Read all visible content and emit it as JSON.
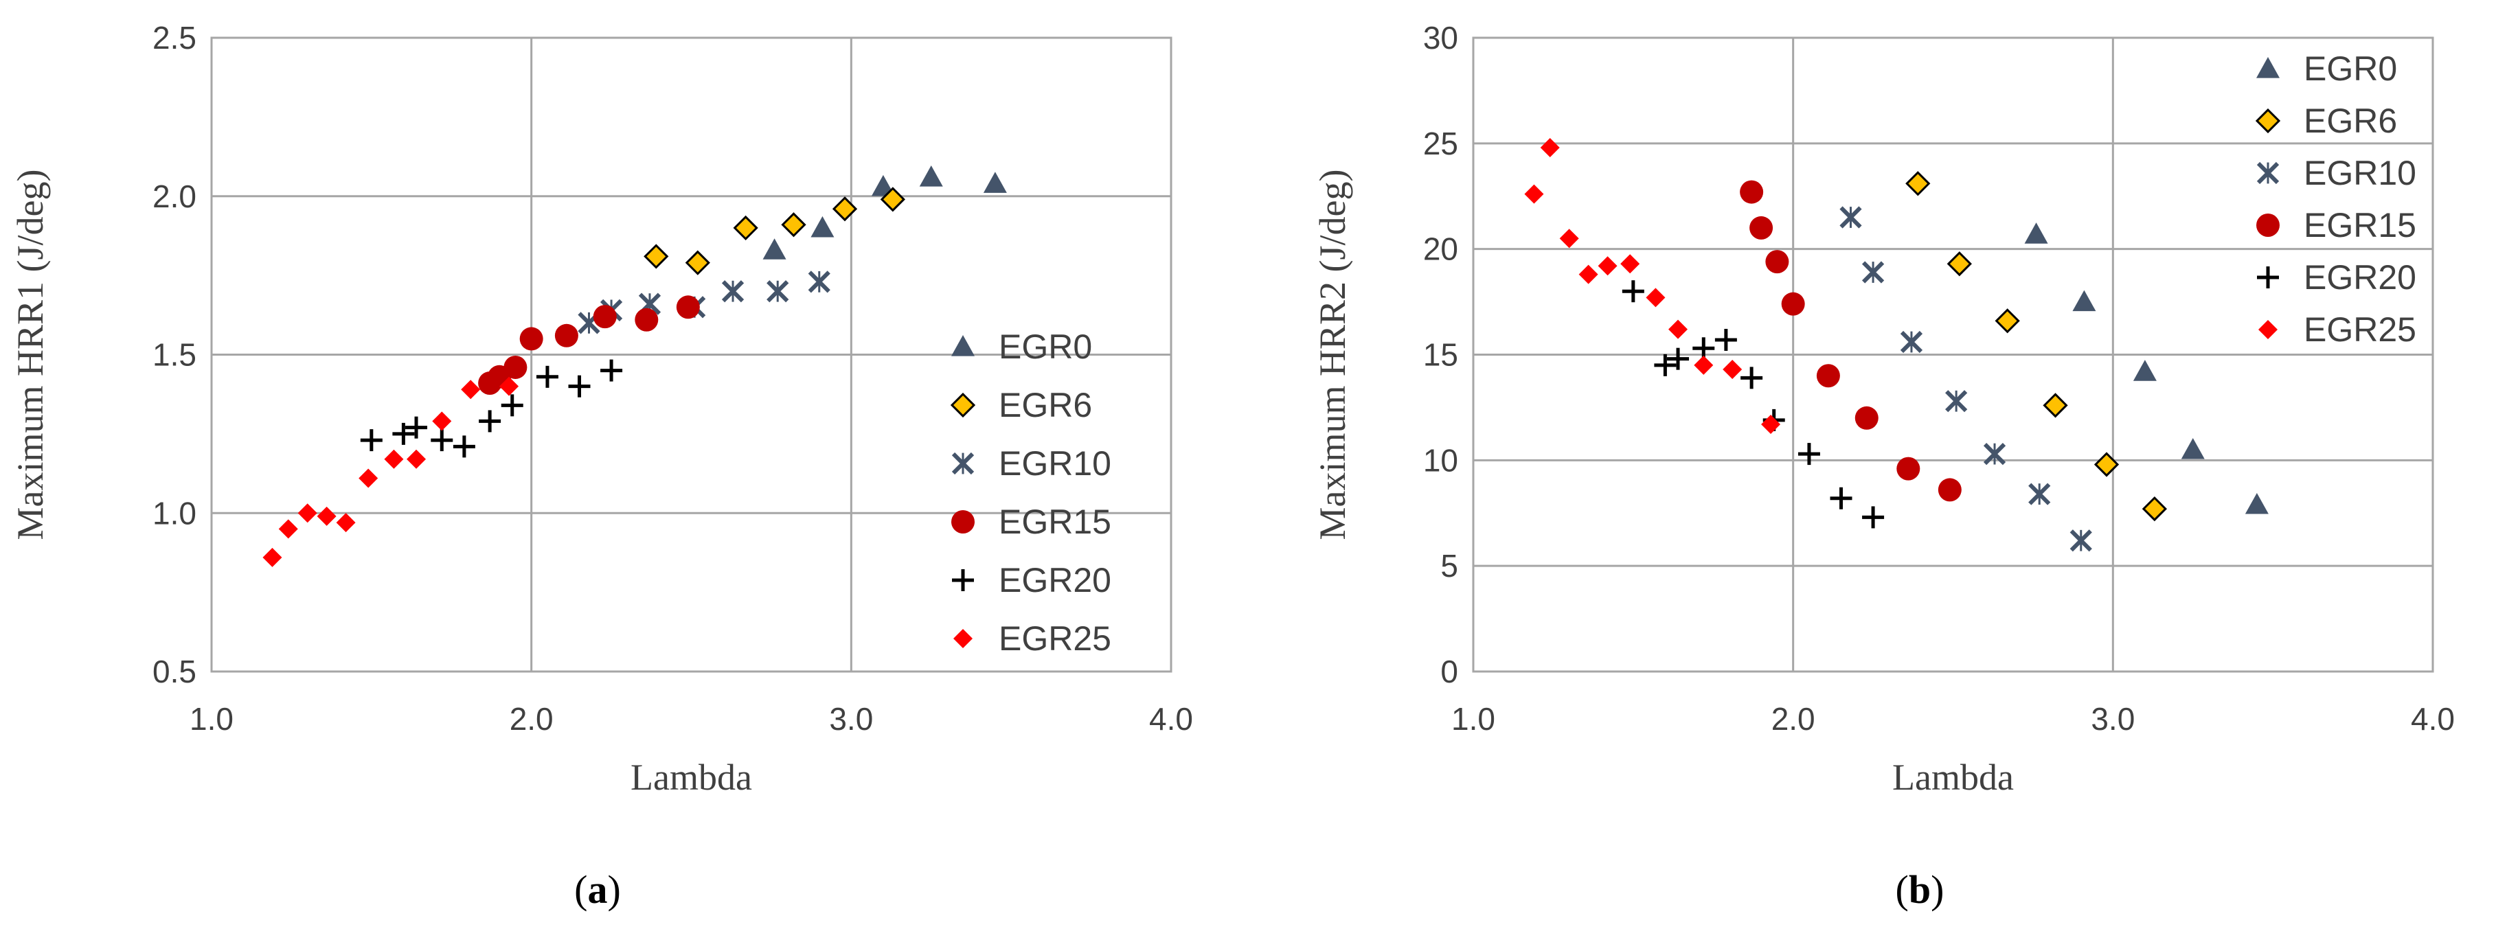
{
  "colors": {
    "EGR0": "#44546A",
    "EGR6": "#FFC000",
    "EGR10": "#44546A",
    "EGR15": "#C00000",
    "EGR20": "#000000",
    "EGR25": "#FF0000",
    "grid": "#A6A6A6"
  },
  "chart_data": [
    {
      "type": "scatter",
      "panel": "a",
      "caption": {
        "open": "(",
        "letter": "a",
        "close": ")"
      },
      "xlabel": "Lambda",
      "ylabel": "Maximum HRR1 (J/deg)",
      "xlim": [
        1.0,
        4.0
      ],
      "ylim": [
        0.5,
        2.5
      ],
      "xticks": [
        1.0,
        2.0,
        3.0,
        4.0
      ],
      "xtick_labels": [
        "1.0",
        "2.0",
        "3.0",
        "4.0"
      ],
      "yticks": [
        0.5,
        1.0,
        1.5,
        2.0,
        2.5
      ],
      "ytick_labels": [
        "0.5",
        "1.0",
        "1.5",
        "2.0",
        "2.5"
      ],
      "grid": true,
      "legend_position": "bottom-right",
      "series": [
        {
          "name": "EGR0",
          "marker": "triangle",
          "points": [
            [
              2.76,
              1.83
            ],
            [
              2.91,
              1.9
            ],
            [
              3.1,
              2.03
            ],
            [
              3.25,
              2.06
            ],
            [
              3.45,
              2.04
            ]
          ]
        },
        {
          "name": "EGR6",
          "marker": "diamond",
          "points": [
            [
              2.39,
              1.81
            ],
            [
              2.52,
              1.79
            ],
            [
              2.67,
              1.9
            ],
            [
              2.82,
              1.91
            ],
            [
              2.98,
              1.96
            ],
            [
              3.13,
              1.99
            ]
          ]
        },
        {
          "name": "EGR10",
          "marker": "x",
          "points": [
            [
              2.18,
              1.6
            ],
            [
              2.25,
              1.64
            ],
            [
              2.37,
              1.66
            ],
            [
              2.51,
              1.65
            ],
            [
              2.63,
              1.7
            ],
            [
              2.77,
              1.7
            ],
            [
              2.9,
              1.73
            ]
          ]
        },
        {
          "name": "EGR15",
          "marker": "circle",
          "points": [
            [
              1.87,
              1.41
            ],
            [
              1.9,
              1.43
            ],
            [
              1.95,
              1.46
            ],
            [
              2.0,
              1.55
            ],
            [
              2.11,
              1.56
            ],
            [
              2.23,
              1.62
            ],
            [
              2.36,
              1.61
            ],
            [
              2.49,
              1.65
            ]
          ]
        },
        {
          "name": "EGR20",
          "marker": "plus",
          "points": [
            [
              1.5,
              1.23
            ],
            [
              1.6,
              1.25
            ],
            [
              1.64,
              1.27
            ],
            [
              1.72,
              1.23
            ],
            [
              1.79,
              1.21
            ],
            [
              1.87,
              1.29
            ],
            [
              1.94,
              1.34
            ],
            [
              2.05,
              1.43
            ],
            [
              2.15,
              1.4
            ],
            [
              2.25,
              1.45
            ]
          ]
        },
        {
          "name": "EGR25",
          "marker": "diamond-small",
          "points": [
            [
              1.19,
              0.86
            ],
            [
              1.24,
              0.95
            ],
            [
              1.3,
              1.0
            ],
            [
              1.36,
              0.99
            ],
            [
              1.42,
              0.97
            ],
            [
              1.49,
              1.11
            ],
            [
              1.57,
              1.17
            ],
            [
              1.64,
              1.17
            ],
            [
              1.72,
              1.29
            ],
            [
              1.81,
              1.39
            ],
            [
              1.93,
              1.4
            ]
          ]
        }
      ]
    },
    {
      "type": "scatter",
      "panel": "b",
      "caption": {
        "open": "(",
        "letter": "b",
        "close": ")"
      },
      "xlabel": "Lambda",
      "ylabel": "Maximum HRR2 (J/deg)",
      "xlim": [
        1.0,
        4.0
      ],
      "ylim": [
        0,
        30
      ],
      "xticks": [
        1.0,
        2.0,
        3.0,
        4.0
      ],
      "xtick_labels": [
        "1.0",
        "2.0",
        "3.0",
        "4.0"
      ],
      "yticks": [
        0,
        5,
        10,
        15,
        20,
        25,
        30
      ],
      "ytick_labels": [
        "0",
        "5",
        "10",
        "15",
        "20",
        "25",
        "30"
      ],
      "grid": true,
      "legend_position": "top-right",
      "series": [
        {
          "name": "EGR0",
          "marker": "triangle",
          "points": [
            [
              2.76,
              20.7
            ],
            [
              2.91,
              17.5
            ],
            [
              3.1,
              14.2
            ],
            [
              3.25,
              10.5
            ],
            [
              3.45,
              7.9
            ]
          ]
        },
        {
          "name": "EGR6",
          "marker": "diamond",
          "points": [
            [
              2.39,
              23.1
            ],
            [
              2.52,
              19.3
            ],
            [
              2.67,
              16.6
            ],
            [
              2.82,
              12.6
            ],
            [
              2.98,
              9.8
            ],
            [
              3.13,
              7.7
            ]
          ]
        },
        {
          "name": "EGR10",
          "marker": "x",
          "points": [
            [
              2.18,
              21.5
            ],
            [
              2.25,
              18.9
            ],
            [
              2.37,
              15.6
            ],
            [
              2.51,
              12.8
            ],
            [
              2.63,
              10.3
            ],
            [
              2.77,
              8.4
            ],
            [
              2.9,
              6.2
            ]
          ]
        },
        {
          "name": "EGR15",
          "marker": "circle",
          "points": [
            [
              1.87,
              22.7
            ],
            [
              1.9,
              21.0
            ],
            [
              1.95,
              19.4
            ],
            [
              2.0,
              17.4
            ],
            [
              2.11,
              14.0
            ],
            [
              2.23,
              12.0
            ],
            [
              2.36,
              9.6
            ],
            [
              2.49,
              8.6
            ]
          ]
        },
        {
          "name": "EGR20",
          "marker": "plus",
          "points": [
            [
              1.5,
              18.0
            ],
            [
              1.6,
              14.5
            ],
            [
              1.64,
              14.8
            ],
            [
              1.72,
              15.3
            ],
            [
              1.79,
              15.7
            ],
            [
              1.87,
              13.9
            ],
            [
              1.94,
              11.9
            ],
            [
              2.05,
              10.3
            ],
            [
              2.15,
              8.2
            ],
            [
              2.25,
              7.3
            ]
          ]
        },
        {
          "name": "EGR25",
          "marker": "diamond-small",
          "points": [
            [
              1.19,
              22.6
            ],
            [
              1.24,
              24.8
            ],
            [
              1.3,
              20.5
            ],
            [
              1.36,
              18.8
            ],
            [
              1.42,
              19.2
            ],
            [
              1.49,
              19.3
            ],
            [
              1.57,
              17.7
            ],
            [
              1.64,
              16.2
            ],
            [
              1.72,
              14.5
            ],
            [
              1.81,
              14.3
            ],
            [
              1.93,
              11.7
            ]
          ]
        }
      ]
    }
  ]
}
